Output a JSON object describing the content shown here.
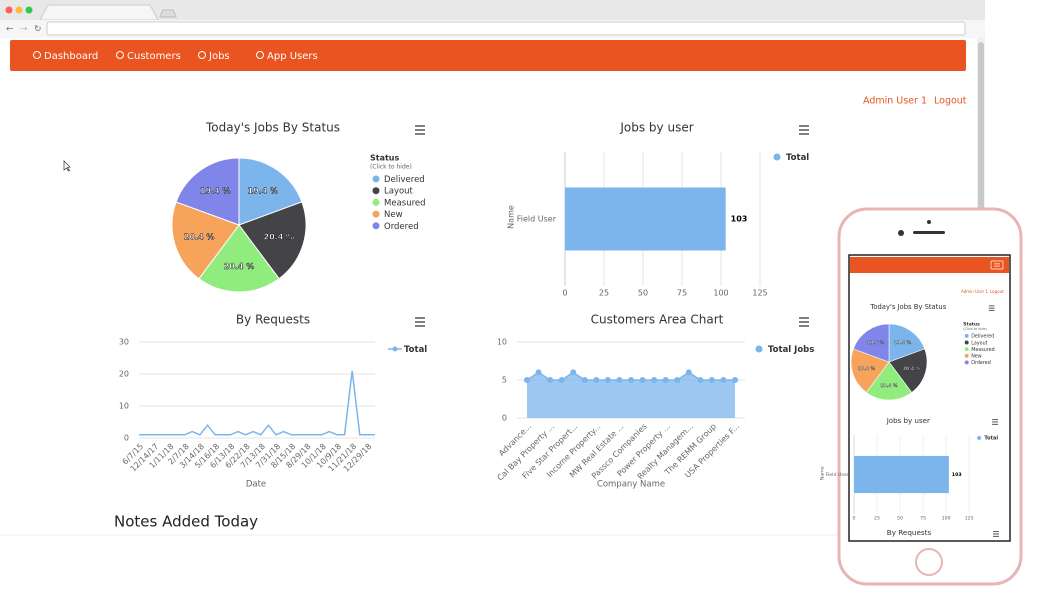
{
  "header": {
    "nav": [
      "Dashboard",
      "Customers",
      "Jobs",
      "App Users"
    ],
    "user": "Admin User 1",
    "logout": "Logout"
  },
  "notes_title": "Notes Added Today",
  "chart_data": [
    {
      "type": "pie",
      "title": "Today's Jobs By Status",
      "legend_title": "Status",
      "legend_subtitle": "(Click to hide)",
      "categories": [
        "Delivered",
        "Layout",
        "Measured",
        "New",
        "Ordered"
      ],
      "values": [
        19.4,
        20.4,
        20.4,
        20.4,
        19.4
      ],
      "value_labels": [
        "19.4 %",
        "20.4 %",
        "20.4 %",
        "20.4 %",
        "19.4 %"
      ],
      "colors": [
        "#7cb5ec",
        "#434348",
        "#90ed7d",
        "#f7a35c",
        "#8085e9"
      ]
    },
    {
      "type": "hbar",
      "title": "Jobs by user",
      "ylabel": "Name",
      "categories": [
        "Field User"
      ],
      "series": [
        {
          "name": "Total",
          "color": "#7cb5ec",
          "values": [
            103
          ]
        }
      ],
      "xlim": [
        0,
        125
      ],
      "xticks": [
        0,
        25,
        50,
        75,
        100,
        125
      ],
      "grid": true
    },
    {
      "type": "line",
      "title": "By Requests",
      "xlabel": "Date",
      "categories": [
        "6/7/15",
        null,
        "12/14/17",
        null,
        "1/11/18",
        null,
        "2/7/18",
        null,
        "3/14/18",
        null,
        "5/16/18",
        null,
        "6/13/18",
        null,
        "6/22/18",
        null,
        "7/13/18",
        null,
        "7/31/18",
        null,
        "8/15/18",
        null,
        "8/29/18",
        null,
        "10/1/18",
        null,
        "10/9/18",
        null,
        "11/21/18",
        null,
        "12/29/18",
        null
      ],
      "series": [
        {
          "name": "Total",
          "color": "#7cb5ec",
          "values": [
            1,
            1,
            1,
            1,
            1,
            1,
            1,
            2,
            1,
            4,
            1,
            1,
            1,
            2,
            1,
            2,
            1,
            4,
            1,
            2,
            1,
            1,
            1,
            1,
            1,
            2,
            1,
            1,
            21,
            1,
            1,
            1
          ]
        }
      ],
      "ylim": [
        0,
        30
      ],
      "yticks": [
        0,
        10,
        20,
        30
      ],
      "grid": true
    },
    {
      "type": "area",
      "title": "Customers Area Chart",
      "xlabel": "Company Name",
      "categories": [
        "Advance...",
        null,
        "Cal Bay Property ...",
        null,
        "Five Star Propert...",
        null,
        "Income Property...",
        null,
        "MW Real Estate ...",
        null,
        "Passco Companies",
        null,
        "Power Property ...",
        null,
        "Realty Managem...",
        null,
        "The REMM Group",
        null,
        "USA Properties F..."
      ],
      "series": [
        {
          "name": "Total Jobs",
          "color": "#7cb5ec",
          "values": [
            5,
            6,
            5,
            5,
            6,
            5,
            5,
            5,
            5,
            5,
            5,
            5,
            5,
            5,
            6,
            5,
            5,
            5,
            5
          ]
        }
      ],
      "ylim": [
        0,
        10
      ],
      "yticks": [
        0,
        5,
        10
      ],
      "grid": true
    }
  ]
}
